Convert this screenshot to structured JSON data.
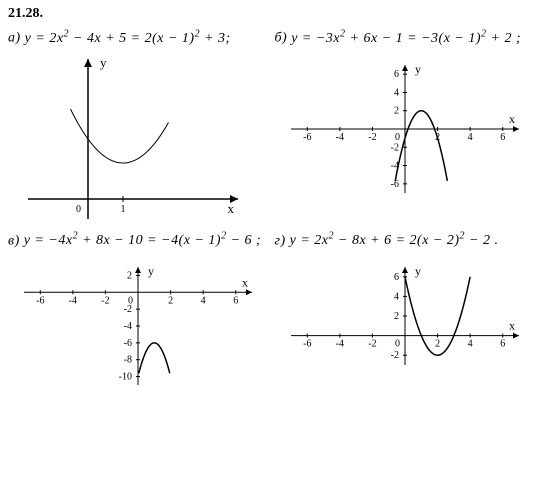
{
  "problem_number": "21.28.",
  "parts": {
    "a": {
      "label": "a)",
      "equation_html": "y = 2x<sup>2</sup> − 4x + 5 = 2(x − 1)<sup>2</sup> + 3;",
      "chart": {
        "type": "parabola",
        "a": 2,
        "h": 1,
        "k": 3,
        "vertex": [
          1,
          3
        ],
        "x_range_draw": [
          -0.5,
          2.3
        ],
        "axes_style": "arrows_only",
        "x_tick_labels": [
          "0",
          "1"
        ],
        "x_tick_values": [
          0,
          1
        ],
        "axis_labels": {
          "x": "x",
          "y": "y"
        },
        "line_color": "#000000",
        "background_color": "#ffffff",
        "line_width": 1
      }
    },
    "b": {
      "label": "б)",
      "equation_html": "y = −3x<sup>2</sup> + 6x − 1 = −3(x − 1)<sup>2</sup> + 2 ;",
      "chart": {
        "type": "parabola",
        "a": -3,
        "h": 1,
        "k": 2,
        "vertex": [
          1,
          2
        ],
        "x_range_draw": [
          -0.6,
          2.6
        ],
        "axes_style": "numeric_grid",
        "x_ticks": [
          -6,
          -4,
          -2,
          0,
          2,
          4,
          6
        ],
        "y_ticks": [
          -6,
          -4,
          -2,
          2,
          4,
          6
        ],
        "axis_labels": {
          "x": "x",
          "y": "y"
        },
        "line_color": "#000000",
        "background_color": "#ffffff",
        "line_width": 1.5
      }
    },
    "v": {
      "label": "в)",
      "equation_html": "y = −4x<sup>2</sup> + 8x − 10 = −4(x − 1)<sup>2</sup> − 6 ;",
      "chart": {
        "type": "parabola",
        "a": -4,
        "h": 1,
        "k": -6,
        "vertex": [
          1,
          -6
        ],
        "x_range_draw": [
          0.05,
          1.95
        ],
        "axes_style": "numeric_grid",
        "x_ticks": [
          -6,
          -4,
          -2,
          0,
          2,
          4,
          6
        ],
        "y_ticks": [
          -10,
          -8,
          -6,
          -4,
          -2,
          2
        ],
        "axis_labels": {
          "x": "x",
          "y": "y"
        },
        "line_color": "#000000",
        "background_color": "#ffffff",
        "line_width": 1.5
      }
    },
    "g": {
      "label": "г)",
      "equation_html": "y = 2x<sup>2</sup> − 8x + 6 = 2(x − 2)<sup>2</sup> − 2 .",
      "chart": {
        "type": "parabola",
        "a": 2,
        "h": 2,
        "k": -2,
        "vertex": [
          2,
          -2
        ],
        "x_range_draw": [
          0,
          4
        ],
        "axes_style": "numeric_grid",
        "x_ticks": [
          -6,
          -4,
          -2,
          0,
          2,
          4,
          6
        ],
        "y_ticks": [
          -2,
          2,
          4,
          6
        ],
        "axis_labels": {
          "x": "x",
          "y": "y"
        },
        "line_color": "#000000",
        "background_color": "#ffffff",
        "line_width": 1.5
      }
    }
  },
  "tick_fontsize": 10,
  "label_fontsize": 12
}
